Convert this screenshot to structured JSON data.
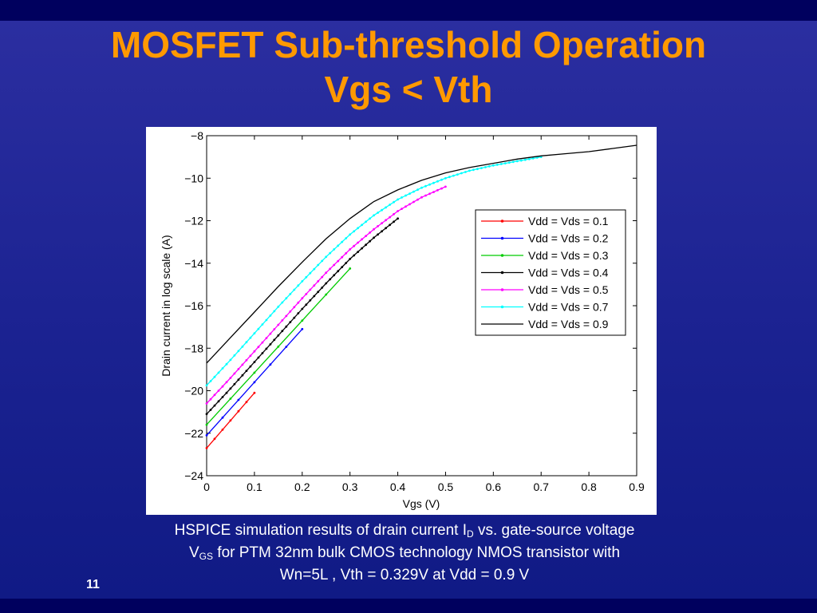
{
  "slide": {
    "title_line1": "MOSFET Sub-threshold Operation",
    "title_line2": "Vgs < Vth",
    "number": "11"
  },
  "caption": {
    "part1": "HSPICE simulation results of drain current I",
    "sub1": "D",
    "part2": " vs. gate-source voltage",
    "part3": "V",
    "sub2": "GS",
    "part4": " for PTM 32nm bulk CMOS technology NMOS transistor with",
    "line3": "Wn=5L , Vth = 0.329V at Vdd = 0.9 V"
  },
  "chart_data": {
    "type": "line",
    "xlabel": "Vgs (V)",
    "ylabel": "Drain current in log scale (A)",
    "xlim": [
      0,
      0.9
    ],
    "ylim": [
      -24,
      -8
    ],
    "xticks": [
      0,
      0.1,
      0.2,
      0.3,
      0.4,
      0.5,
      0.6,
      0.7,
      0.8,
      0.9
    ],
    "yticks": [
      -24,
      -22,
      -20,
      -18,
      -16,
      -14,
      -12,
      -10,
      -8
    ],
    "legend_position": "right",
    "series": [
      {
        "name": "Vdd = Vds = 0.1",
        "color": "#ff0000",
        "markers": true,
        "x": [
          0,
          0.1
        ],
        "y": [
          -22.7,
          -20.1
        ]
      },
      {
        "name": "Vdd = Vds = 0.2",
        "color": "#0000ff",
        "markers": true,
        "x": [
          0,
          0.2
        ],
        "y": [
          -22.1,
          -17.1
        ]
      },
      {
        "name": "Vdd = Vds = 0.3",
        "color": "#00cc00",
        "markers": true,
        "x": [
          0,
          0.3
        ],
        "y": [
          -21.6,
          -14.25
        ]
      },
      {
        "name": "Vdd = Vds = 0.4",
        "color": "#000000",
        "markers": true,
        "x": [
          0,
          0.05,
          0.1,
          0.15,
          0.2,
          0.25,
          0.3,
          0.35,
          0.4
        ],
        "y": [
          -21.1,
          -19.9,
          -18.65,
          -17.4,
          -16.15,
          -14.95,
          -13.8,
          -12.8,
          -11.9
        ]
      },
      {
        "name": "Vdd = Vds = 0.5",
        "color": "#ff00ff",
        "markers": true,
        "x": [
          0,
          0.05,
          0.1,
          0.15,
          0.2,
          0.25,
          0.3,
          0.35,
          0.4,
          0.45,
          0.5
        ],
        "y": [
          -20.6,
          -19.4,
          -18.15,
          -16.9,
          -15.65,
          -14.45,
          -13.35,
          -12.4,
          -11.55,
          -10.9,
          -10.4
        ]
      },
      {
        "name": "Vdd = Vds = 0.7",
        "color": "#00ffff",
        "markers": true,
        "x": [
          0,
          0.05,
          0.1,
          0.15,
          0.2,
          0.25,
          0.3,
          0.35,
          0.4,
          0.45,
          0.5,
          0.55,
          0.6,
          0.65,
          0.7
        ],
        "y": [
          -19.75,
          -18.55,
          -17.3,
          -16.05,
          -14.85,
          -13.7,
          -12.65,
          -11.75,
          -11.0,
          -10.45,
          -10.0,
          -9.65,
          -9.4,
          -9.2,
          -9.0
        ]
      },
      {
        "name": "Vdd = Vds = 0.9",
        "color": "#000000",
        "markers": false,
        "x": [
          0,
          0.05,
          0.1,
          0.15,
          0.2,
          0.25,
          0.3,
          0.35,
          0.4,
          0.45,
          0.5,
          0.55,
          0.6,
          0.65,
          0.7,
          0.75,
          0.8,
          0.85,
          0.9
        ],
        "y": [
          -18.7,
          -17.5,
          -16.3,
          -15.1,
          -13.95,
          -12.85,
          -11.9,
          -11.1,
          -10.55,
          -10.1,
          -9.75,
          -9.5,
          -9.3,
          -9.1,
          -8.95,
          -8.85,
          -8.75,
          -8.6,
          -8.45
        ]
      }
    ]
  }
}
